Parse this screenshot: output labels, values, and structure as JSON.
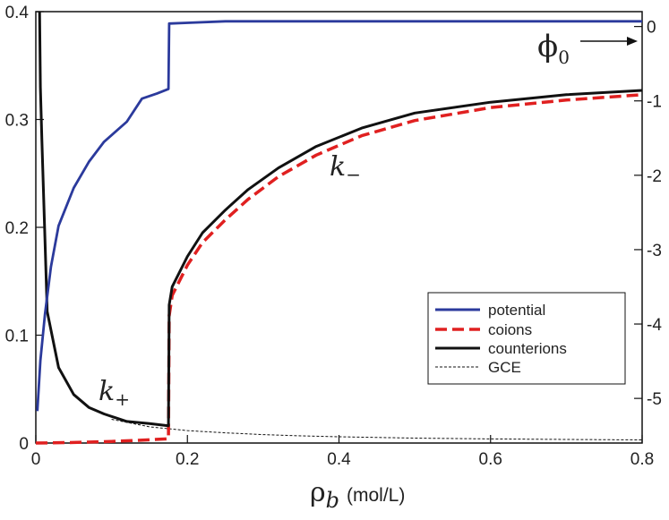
{
  "chart_data": {
    "type": "line",
    "xlabel": {
      "symbol": "ρ",
      "subscript": "b",
      "unit": "(mol/L)"
    },
    "xlim": [
      0,
      0.8
    ],
    "ylim_left": [
      0,
      0.4
    ],
    "ylim_right": [
      -5.6,
      0.2
    ],
    "x_ticks": [
      0,
      0.2,
      0.4,
      0.6,
      0.8
    ],
    "x_tick_labels": [
      "0",
      "0.2",
      "0.4",
      "0.6",
      "0.8"
    ],
    "y_left_ticks": [
      0,
      0.1,
      0.2,
      0.3,
      0.4
    ],
    "y_left_tick_labels": [
      "0",
      "0.1",
      "0.2",
      "0.3",
      "0.4"
    ],
    "y_right_ticks": [
      0,
      -1,
      -2,
      -3,
      -4,
      -5
    ],
    "y_right_tick_labels": [
      "0",
      "-1",
      "-2",
      "-3",
      "-4",
      "-5"
    ],
    "grid": false,
    "legend_position": "lower-right",
    "series": [
      {
        "name": "potential",
        "axis": "right",
        "color": "#2b3a9c",
        "style": "solid",
        "x": [
          0.002,
          0.006,
          0.012,
          0.02,
          0.03,
          0.05,
          0.07,
          0.09,
          0.12,
          0.14,
          0.16,
          0.175,
          0.176,
          0.2,
          0.25,
          0.3,
          0.4,
          0.5,
          0.6,
          0.7,
          0.8
        ],
        "y": [
          -5.17,
          -4.49,
          -3.87,
          -3.23,
          -2.68,
          -2.17,
          -1.82,
          -1.55,
          -1.28,
          -0.97,
          -0.9,
          -0.84,
          0.04,
          0.05,
          0.07,
          0.07,
          0.07,
          0.07,
          0.07,
          0.07,
          0.07
        ]
      },
      {
        "name": "coions",
        "axis": "left",
        "color": "#e02020",
        "style": "dashed",
        "x": [
          0.0,
          0.05,
          0.1,
          0.15,
          0.175,
          0.176,
          0.18,
          0.2,
          0.22,
          0.25,
          0.28,
          0.32,
          0.37,
          0.43,
          0.5,
          0.6,
          0.7,
          0.8
        ],
        "y": [
          0.0,
          0.0005,
          0.0015,
          0.003,
          0.004,
          0.118,
          0.137,
          0.165,
          0.186,
          0.207,
          0.226,
          0.247,
          0.267,
          0.285,
          0.299,
          0.311,
          0.318,
          0.323
        ]
      },
      {
        "name": "counterions",
        "axis": "left",
        "color": "#111111",
        "style": "solid",
        "x": [
          0.005,
          0.006,
          0.008,
          0.015,
          0.03,
          0.05,
          0.07,
          0.09,
          0.12,
          0.15,
          0.175,
          0.176,
          0.18,
          0.2,
          0.22,
          0.25,
          0.28,
          0.32,
          0.37,
          0.43,
          0.5,
          0.6,
          0.7,
          0.8
        ],
        "y": [
          0.4,
          0.33,
          0.28,
          0.122,
          0.07,
          0.045,
          0.033,
          0.027,
          0.02,
          0.018,
          0.016,
          0.128,
          0.145,
          0.173,
          0.195,
          0.216,
          0.235,
          0.255,
          0.275,
          0.292,
          0.306,
          0.316,
          0.323,
          0.327
        ]
      },
      {
        "name": "GCE",
        "axis": "left",
        "color": "#111111",
        "style": "dotted",
        "x": [
          0.1,
          0.15,
          0.2,
          0.25,
          0.3,
          0.35,
          0.4,
          0.5,
          0.6,
          0.7,
          0.8
        ],
        "y": [
          0.022,
          0.015,
          0.0115,
          0.0095,
          0.0078,
          0.0066,
          0.0058,
          0.0046,
          0.0038,
          0.0033,
          0.0029
        ]
      }
    ],
    "annotations": {
      "phi": {
        "text": "ϕ",
        "subscript": "0"
      },
      "k_minus": {
        "text": "k",
        "subscript": "−"
      },
      "k_plus": {
        "text": "k",
        "subscript": "+"
      }
    }
  }
}
